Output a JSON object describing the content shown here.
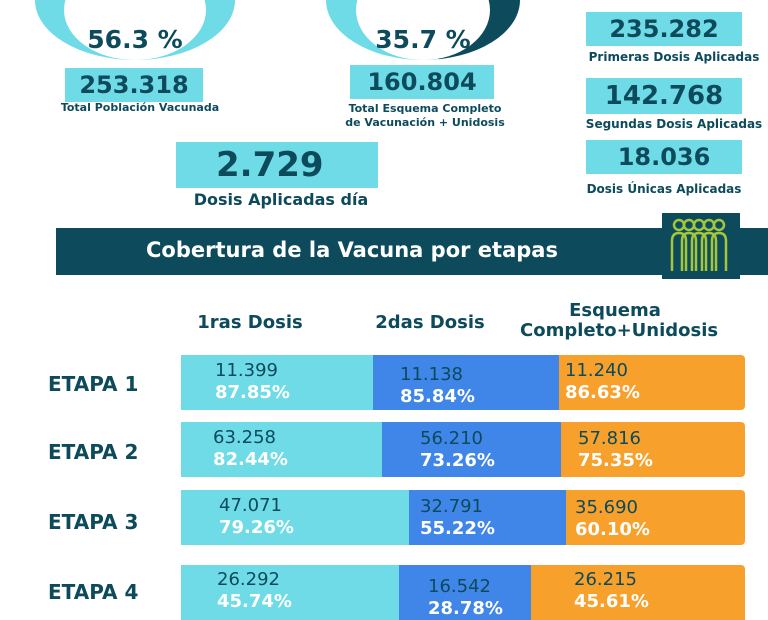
{
  "gauges": [
    {
      "percent": "56.3 %",
      "value": "253.318",
      "caption": "Total Población Vacunada"
    },
    {
      "percent": "35.7 %",
      "value": "160.804",
      "caption_lines": [
        "Total Esquema Completo",
        "de Vacunación + Unidosis"
      ]
    }
  ],
  "daily": {
    "value": "2.729",
    "caption": "Dosis Aplicadas día"
  },
  "right_stats": [
    {
      "value": "235.282",
      "caption": "Primeras Dosis Aplicadas"
    },
    {
      "value": "142.768",
      "caption": "Segundas Dosis Aplicadas"
    },
    {
      "value": "18.036",
      "caption": "Dosis Únicas Aplicadas"
    }
  ],
  "banner": {
    "title": "Cobertura de la Vacuna por etapas",
    "icon": "people-group-icon"
  },
  "columns": {
    "first": "1ras Dosis",
    "second": "2das Dosis",
    "third_lines": [
      "Esquema",
      "Completo+Unidosis"
    ]
  },
  "colors": {
    "primary": "#0d4a5c",
    "cyan": "#6fdbe6",
    "blue": "#3f86e8",
    "orange": "#f7a12c",
    "icon_green": "#a4c639"
  },
  "stages": [
    {
      "label": "ETAPA 1",
      "first": {
        "value": "11.399",
        "pct": "87.85%"
      },
      "second": {
        "value": "11.138",
        "pct": "85.84%"
      },
      "third": {
        "value": "11.240",
        "pct": "86.63%"
      }
    },
    {
      "label": "ETAPA 2",
      "first": {
        "value": "63.258",
        "pct": "82.44%"
      },
      "second": {
        "value": "56.210",
        "pct": "73.26%"
      },
      "third": {
        "value": "57.816",
        "pct": "75.35%"
      }
    },
    {
      "label": "ETAPA 3",
      "first": {
        "value": "47.071",
        "pct": "79.26%"
      },
      "second": {
        "value": "32.791",
        "pct": "55.22%"
      },
      "third": {
        "value": "35.690",
        "pct": "60.10%"
      }
    },
    {
      "label": "ETAPA 4",
      "first": {
        "value": "26.292",
        "pct": "45.74%"
      },
      "second": {
        "value": "16.542",
        "pct": "28.78%"
      },
      "third": {
        "value": "26.215",
        "pct": "45.61%"
      }
    }
  ]
}
